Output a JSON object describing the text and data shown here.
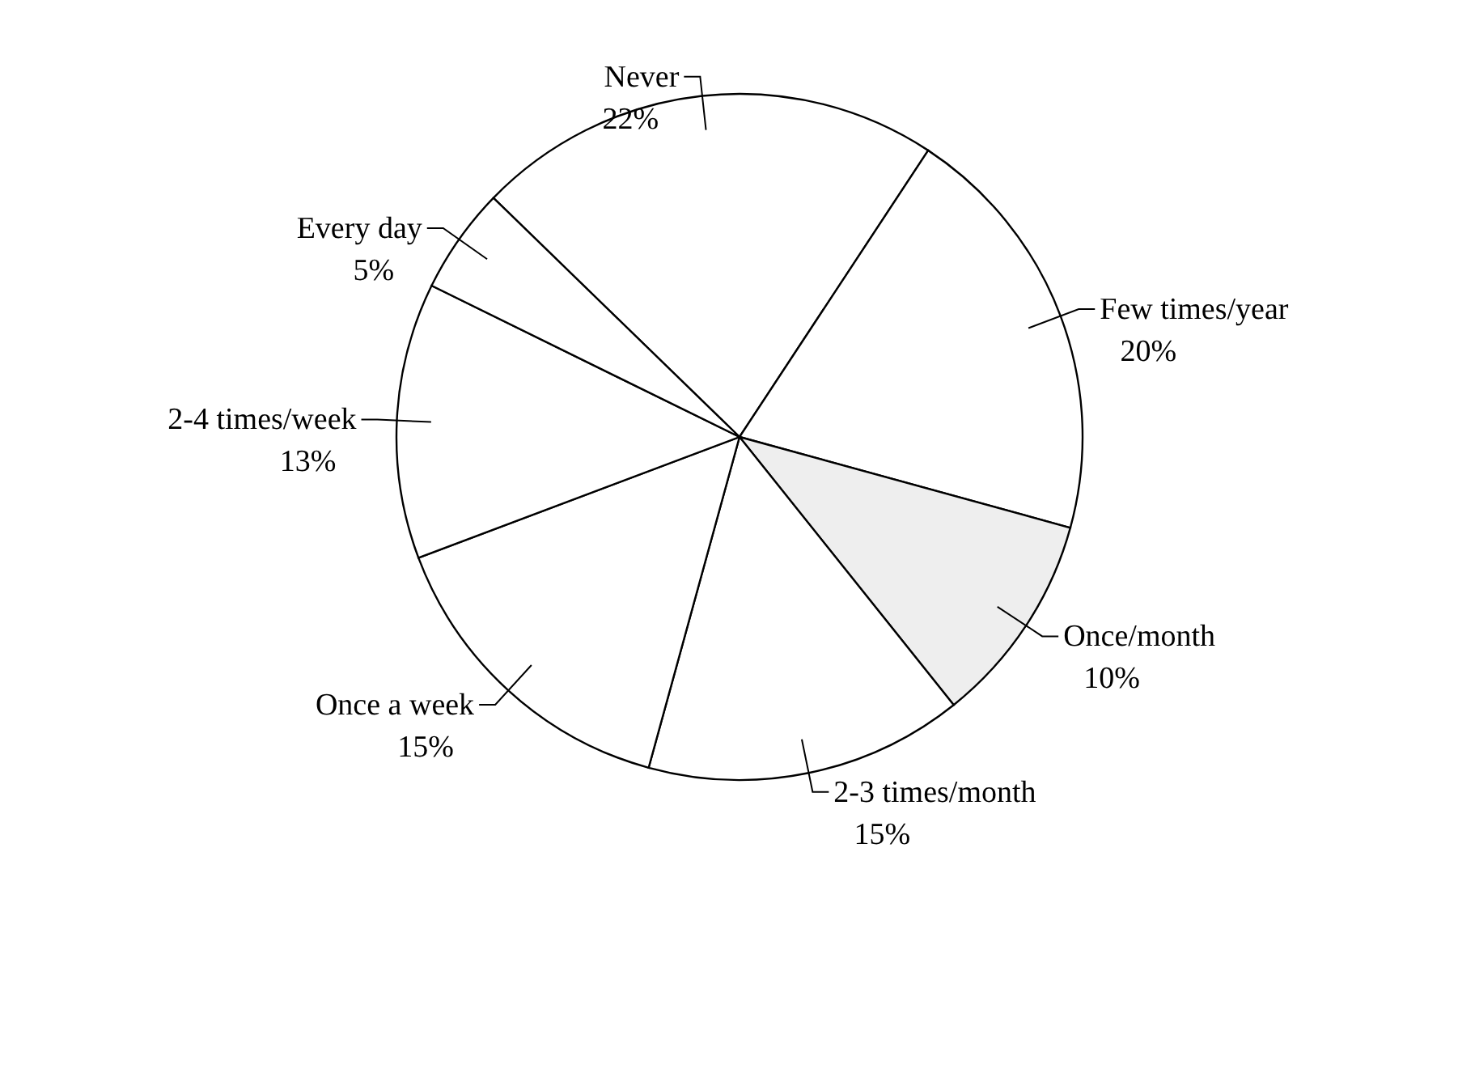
{
  "chart_data": {
    "type": "pie",
    "categories": [
      "Never",
      "Few times/year",
      "Once/month",
      "2-3 times/month",
      "Once a week",
      "2-4 times/week",
      "Every day"
    ],
    "values": [
      22,
      20,
      10,
      15,
      15,
      13,
      5
    ],
    "value_labels": [
      "22%",
      "20%",
      "10%",
      "15%",
      "15%",
      "13%",
      "5%"
    ],
    "colors": [
      "#ffffff",
      "#ffffff",
      "#eeeeee",
      "#ffffff",
      "#ffffff",
      "#ffffff",
      "#ffffff"
    ],
    "legend": false
  }
}
